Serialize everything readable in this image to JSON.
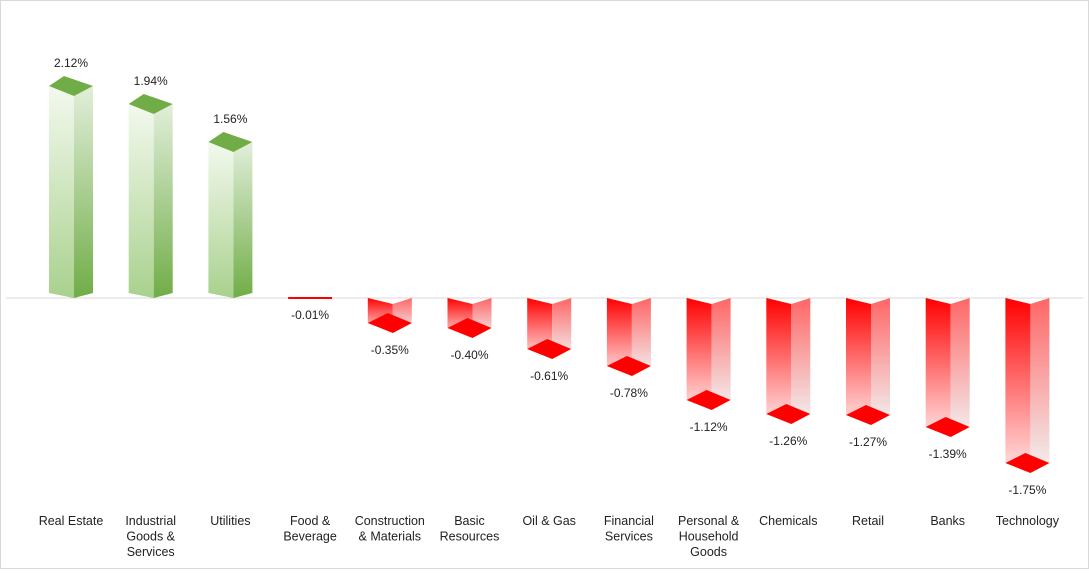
{
  "chart_data": {
    "type": "bar",
    "title": "",
    "xlabel": "",
    "ylabel": "",
    "categories": [
      "Real Estate",
      "Industrial Goods & Services",
      "Utilities",
      "Food & Beverage",
      "Construction & Materials",
      "Basic Resources",
      "Oil & Gas",
      "Financial Services",
      "Personal & Household Goods",
      "Chemicals",
      "Retail",
      "Banks",
      "Technology"
    ],
    "category_label_lines": [
      [
        "Real Estate"
      ],
      [
        "Industrial",
        "Goods &",
        "Services"
      ],
      [
        "Utilities"
      ],
      [
        "Food &",
        "Beverage"
      ],
      [
        "Construction",
        "& Materials"
      ],
      [
        "Basic",
        "Resources"
      ],
      [
        "Oil & Gas"
      ],
      [
        "Financial",
        "Services"
      ],
      [
        "Personal &",
        "Household",
        "Goods"
      ],
      [
        "Chemicals"
      ],
      [
        "Retail"
      ],
      [
        "Banks"
      ],
      [
        "Technology"
      ]
    ],
    "values": [
      2.12,
      1.94,
      1.56,
      -0.01,
      -0.35,
      -0.4,
      -0.61,
      -0.78,
      -1.12,
      -1.26,
      -1.27,
      -1.39,
      -1.75
    ],
    "data_labels": [
      "2.12%",
      "1.94%",
      "1.56%",
      "-0.01%",
      "-0.35%",
      "-0.40%",
      "-0.61%",
      "-0.78%",
      "-1.12%",
      "-1.26%",
      "-1.27%",
      "-1.39%",
      "-1.75%"
    ],
    "ylim": [
      -2.0,
      2.5
    ],
    "grid": false,
    "legend": "none",
    "colors": {
      "positive": "#70ad47",
      "positive_light": "#f3f9ee",
      "negative": "#ff0000",
      "negative_light": "#f2f2f2",
      "zero_line": "#d9d9d9"
    }
  }
}
